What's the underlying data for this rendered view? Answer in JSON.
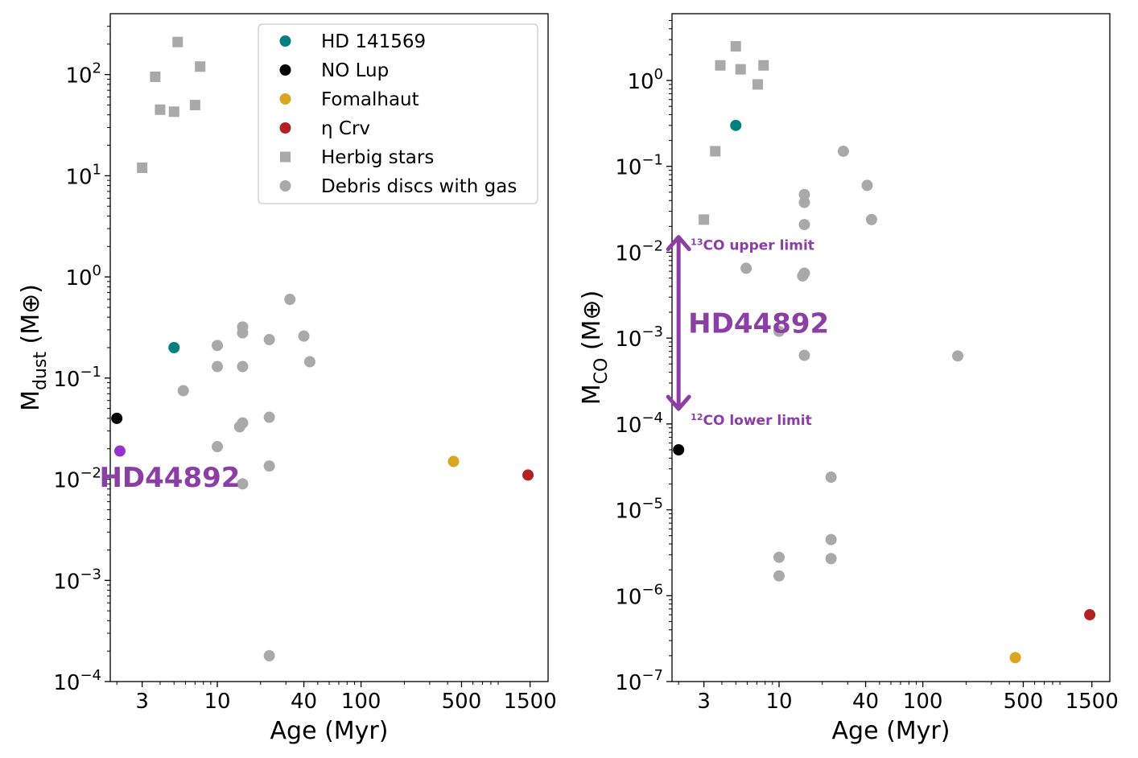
{
  "chart_data": [
    {
      "type": "scatter",
      "xlabel": "Age (Myr)",
      "ylabel_main": "M",
      "ylabel_sub": "dust",
      "ylabel_unit": " (M⊕)",
      "xscale": "log",
      "yscale": "log",
      "xlim": [
        1.8,
        2000
      ],
      "ylim": [
        0.0001,
        400
      ],
      "xticks": [
        {
          "value": 3,
          "label": "3"
        },
        {
          "value": 10,
          "label": "10"
        },
        {
          "value": 40,
          "label": "40"
        },
        {
          "value": 100,
          "label": "100"
        },
        {
          "value": 500,
          "label": "500"
        },
        {
          "value": 1500,
          "label": "1500"
        }
      ],
      "yticks": [
        {
          "value": 0.0001,
          "base": "10",
          "exp": "−4"
        },
        {
          "value": 0.001,
          "base": "10",
          "exp": "−3"
        },
        {
          "value": 0.01,
          "base": "10",
          "exp": "−2"
        },
        {
          "value": 0.1,
          "base": "10",
          "exp": "−1"
        },
        {
          "value": 1,
          "base": "10",
          "exp": "0"
        },
        {
          "value": 10,
          "base": "10",
          "exp": "1"
        },
        {
          "value": 100,
          "base": "10",
          "exp": "2"
        }
      ],
      "legend": {
        "placement": "upper-right",
        "entries": [
          {
            "label": "HD 141569",
            "color": "#008080",
            "marker": "circle"
          },
          {
            "label": "NO Lup",
            "color": "#000000",
            "marker": "circle"
          },
          {
            "label": "Fomalhaut",
            "color": "#DAA520",
            "marker": "circle"
          },
          {
            "label": "η Crv",
            "color": "#B22222",
            "marker": "circle"
          },
          {
            "label": "Herbig stars",
            "color": "#A9A9A9",
            "marker": "square"
          },
          {
            "label": "Debris discs with gas",
            "color": "#A9A9A9",
            "marker": "circle"
          }
        ]
      },
      "series": [
        {
          "name": "Herbig stars",
          "marker": "square",
          "color": "#A9A9A9",
          "points": [
            [
              3,
              12
            ],
            [
              3.7,
              95
            ],
            [
              4,
              45
            ],
            [
              5,
              43
            ],
            [
              5.3,
              210
            ],
            [
              7,
              50
            ],
            [
              7.6,
              120
            ]
          ]
        },
        {
          "name": "Debris discs with gas",
          "marker": "circle",
          "color": "#A9A9A9",
          "points": [
            [
              5.8,
              0.075
            ],
            [
              10,
              0.21
            ],
            [
              10,
              0.13
            ],
            [
              10,
              0.021
            ],
            [
              15,
              0.32
            ],
            [
              15,
              0.28
            ],
            [
              15,
              0.13
            ],
            [
              14.3,
              0.033
            ],
            [
              15,
              0.036
            ],
            [
              15,
              0.009
            ],
            [
              23,
              0.24
            ],
            [
              23,
              0.041
            ],
            [
              23,
              0.0135
            ],
            [
              23,
              0.00018
            ],
            [
              32,
              0.6
            ],
            [
              40,
              0.26
            ],
            [
              44,
              0.145
            ]
          ]
        },
        {
          "name": "HD 141569",
          "marker": "circle",
          "color": "#008080",
          "points": [
            [
              5,
              0.2
            ]
          ]
        },
        {
          "name": "NO Lup",
          "marker": "circle",
          "color": "#000000",
          "points": [
            [
              2,
              0.04
            ]
          ]
        },
        {
          "name": "Fomalhaut",
          "marker": "circle",
          "color": "#DAA520",
          "points": [
            [
              440,
              0.015
            ]
          ]
        },
        {
          "name": "η Crv",
          "marker": "circle",
          "color": "#B22222",
          "points": [
            [
              1450,
              0.011
            ]
          ]
        },
        {
          "name": "HD44892",
          "marker": "circle",
          "color": "#9932CC",
          "points": [
            [
              2.1,
              0.019
            ]
          ]
        }
      ],
      "annotations": [
        {
          "text": "HD44892",
          "color": "#8B3FA5",
          "x": 2.1,
          "y": 0.0105
        }
      ]
    },
    {
      "type": "scatter",
      "xlabel": "Age (Myr)",
      "ylabel_main": "M",
      "ylabel_sub": "CO",
      "ylabel_unit": " (M⊕)",
      "xscale": "log",
      "yscale": "log",
      "xlim": [
        1.8,
        2000
      ],
      "ylim": [
        1e-07,
        6
      ],
      "xticks": [
        {
          "value": 3,
          "label": "3"
        },
        {
          "value": 10,
          "label": "10"
        },
        {
          "value": 40,
          "label": "40"
        },
        {
          "value": 100,
          "label": "100"
        },
        {
          "value": 500,
          "label": "500"
        },
        {
          "value": 1500,
          "label": "1500"
        }
      ],
      "yticks": [
        {
          "value": 1e-07,
          "base": "10",
          "exp": "−7"
        },
        {
          "value": 1e-06,
          "base": "10",
          "exp": "−6"
        },
        {
          "value": 1e-05,
          "base": "10",
          "exp": "−5"
        },
        {
          "value": 0.0001,
          "base": "10",
          "exp": "−4"
        },
        {
          "value": 0.001,
          "base": "10",
          "exp": "−3"
        },
        {
          "value": 0.01,
          "base": "10",
          "exp": "−2"
        },
        {
          "value": 0.1,
          "base": "10",
          "exp": "−1"
        },
        {
          "value": 1,
          "base": "10",
          "exp": "0"
        }
      ],
      "series": [
        {
          "name": "Herbig stars",
          "marker": "square",
          "color": "#A9A9A9",
          "points": [
            [
              3,
              0.024
            ],
            [
              3.6,
              0.15
            ],
            [
              3.9,
              1.5
            ],
            [
              5,
              2.5
            ],
            [
              5.4,
              1.35
            ],
            [
              7.1,
              0.9
            ],
            [
              7.8,
              1.5
            ]
          ]
        },
        {
          "name": "Debris discs with gas",
          "marker": "circle",
          "color": "#A9A9A9",
          "points": [
            [
              5.9,
              0.0065
            ],
            [
              10,
              0.0012
            ],
            [
              10,
              2.8e-06
            ],
            [
              10,
              1.7e-06
            ],
            [
              15,
              0.047
            ],
            [
              15,
              0.038
            ],
            [
              15,
              0.021
            ],
            [
              14.6,
              0.0053
            ],
            [
              15,
              0.0057
            ],
            [
              15,
              0.00063
            ],
            [
              23,
              2.4e-05
            ],
            [
              23,
              4.5e-06
            ],
            [
              23,
              2.7e-06
            ],
            [
              28,
              0.15
            ],
            [
              41,
              0.06
            ],
            [
              44,
              0.024
            ],
            [
              175,
              0.00062
            ]
          ]
        },
        {
          "name": "HD 141569",
          "marker": "circle",
          "color": "#008080",
          "points": [
            [
              5,
              0.3
            ]
          ]
        },
        {
          "name": "NO Lup",
          "marker": "circle",
          "color": "#000000",
          "points": [
            [
              2,
              5e-05
            ]
          ]
        },
        {
          "name": "Fomalhaut",
          "marker": "circle",
          "color": "#DAA520",
          "points": [
            [
              440,
              1.9e-07
            ]
          ]
        },
        {
          "name": "η Crv",
          "marker": "circle",
          "color": "#B22222",
          "points": [
            [
              1450,
              6e-07
            ]
          ]
        }
      ],
      "range_arrow": {
        "x": 2,
        "y_low": 0.00015,
        "y_high": 0.015,
        "color": "#8B3FA5",
        "label": "HD44892",
        "upper_label_iso": "13",
        "upper_label_text": "CO upper limit",
        "lower_label_iso": "12",
        "lower_label_text": "CO lower limit"
      }
    }
  ]
}
